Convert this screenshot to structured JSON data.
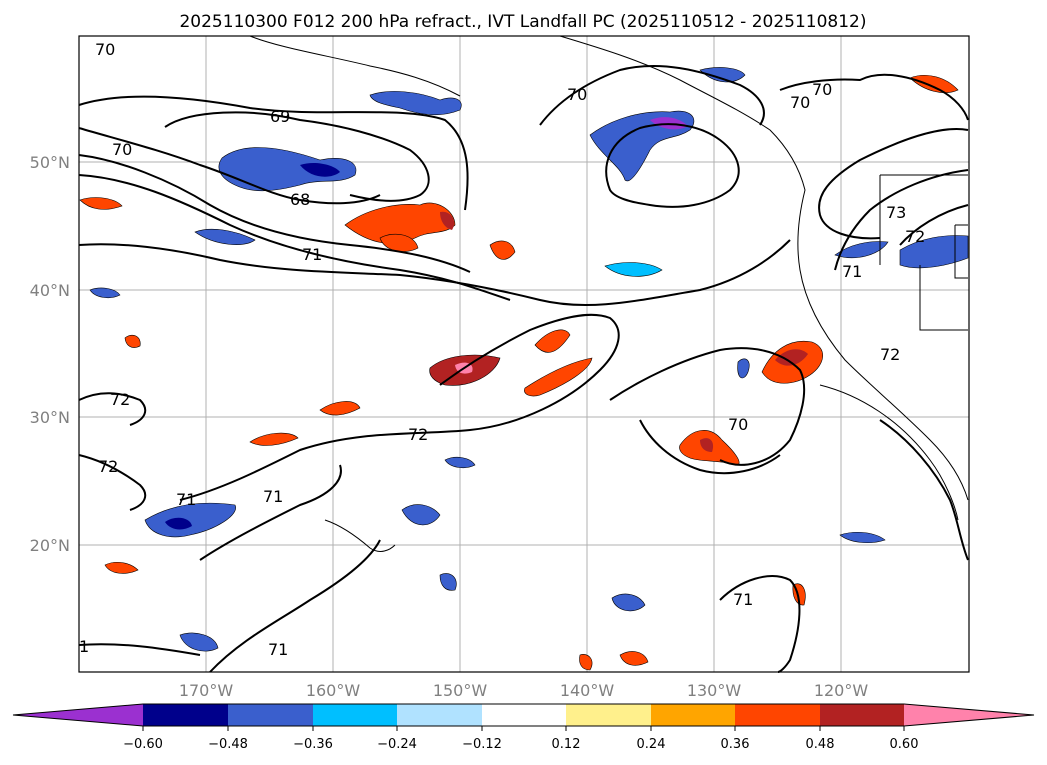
{
  "title": "2025110300 F012 200 hPa refract., IVT Landfall PC (2025110512 - 2025110812)",
  "lat_labels": [
    "50°N",
    "40°N",
    "30°N",
    "20°N"
  ],
  "lon_labels": [
    "170°W",
    "160°W",
    "150°W",
    "140°W",
    "130°W",
    "120°W"
  ],
  "colorbar": {
    "ticks": [
      "−0.60",
      "−0.48",
      "−0.36",
      "−0.24",
      "−0.12",
      "0.12",
      "0.24",
      "0.36",
      "0.48",
      "0.60"
    ],
    "colors": [
      "#9b30d0",
      "#00008b",
      "#3a5fcd",
      "#00bfff",
      "#b0e2ff",
      "#ffffff",
      "#fff08c",
      "#ffa500",
      "#ff4500",
      "#b22222",
      "#ff82ab"
    ]
  },
  "contour_labels": [
    "70",
    "69",
    "70",
    "68",
    "71",
    "70",
    "70",
    "70",
    "73",
    "72",
    "71",
    "72",
    "72",
    "72",
    "71",
    "72",
    "70",
    "71",
    "71",
    "71",
    "1"
  ],
  "colors": {
    "land_line": "#000000",
    "grid": "#b0b0b0"
  }
}
